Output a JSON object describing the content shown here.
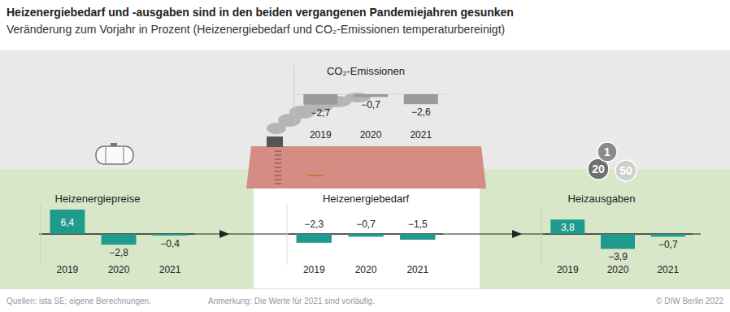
{
  "title": "Heizenergiebedarf und -ausgaben sind in den beiden vergangenen Pandemiejahren gesunken",
  "subtitle": "Veränderung zum Vorjahr in Prozent (Heizenergiebedarf und CO₂-Emissionen temperaturbereinigt)",
  "chart_data": [
    {
      "type": "bar",
      "title": "Heizenergiepreise",
      "categories": [
        "2019",
        "2020",
        "2021"
      ],
      "values": [
        6.4,
        -2.8,
        -0.4
      ],
      "value_labels": [
        "6,4",
        "−2,8",
        "−0,4"
      ],
      "color": "#1f9a8c",
      "ylim": [
        -8,
        8
      ],
      "yticks": [
        0
      ],
      "tick_labels": "x",
      "data_labels": true
    },
    {
      "type": "bar",
      "title": "Heizenergiebedarf",
      "categories": [
        "2019",
        "2020",
        "2021"
      ],
      "values": [
        -2.3,
        -0.7,
        -1.5
      ],
      "value_labels": [
        "−2,3",
        "−0,7",
        "−1,5"
      ],
      "color": "#1f9a8c",
      "ylim": [
        -8,
        8
      ],
      "yticks": [
        0
      ],
      "tick_labels": "x",
      "data_labels": true
    },
    {
      "type": "bar",
      "title": "Heizausgaben",
      "categories": [
        "2019",
        "2020",
        "2021"
      ],
      "values": [
        3.8,
        -3.9,
        -0.7
      ],
      "value_labels": [
        "3,8",
        "−3,9",
        "−0,7"
      ],
      "color": "#1f9a8c",
      "ylim": [
        -8,
        8
      ],
      "yticks": [
        0
      ],
      "tick_labels": "x",
      "data_labels": true
    },
    {
      "type": "bar",
      "title": "CO₂-Emissionen",
      "categories": [
        "2019",
        "2020",
        "2021"
      ],
      "values": [
        -2.7,
        -0.7,
        -2.6
      ],
      "value_labels": [
        "−2,7",
        "−0,7",
        "−2,6"
      ],
      "color": "#9a9a9a",
      "ylim": [
        -8,
        8
      ],
      "yticks": [
        0
      ],
      "tick_labels": "x",
      "data_labels": true
    }
  ],
  "illustration": {
    "coin_labels": [
      "1",
      "20",
      "50"
    ]
  },
  "footer": {
    "source": "Quellen: ista SE; eigene Berechnungen.",
    "note": "Anmerkung: Die Werte für 2021 sind vorläufig.",
    "copyright": "© DIW Berlin 2022"
  }
}
